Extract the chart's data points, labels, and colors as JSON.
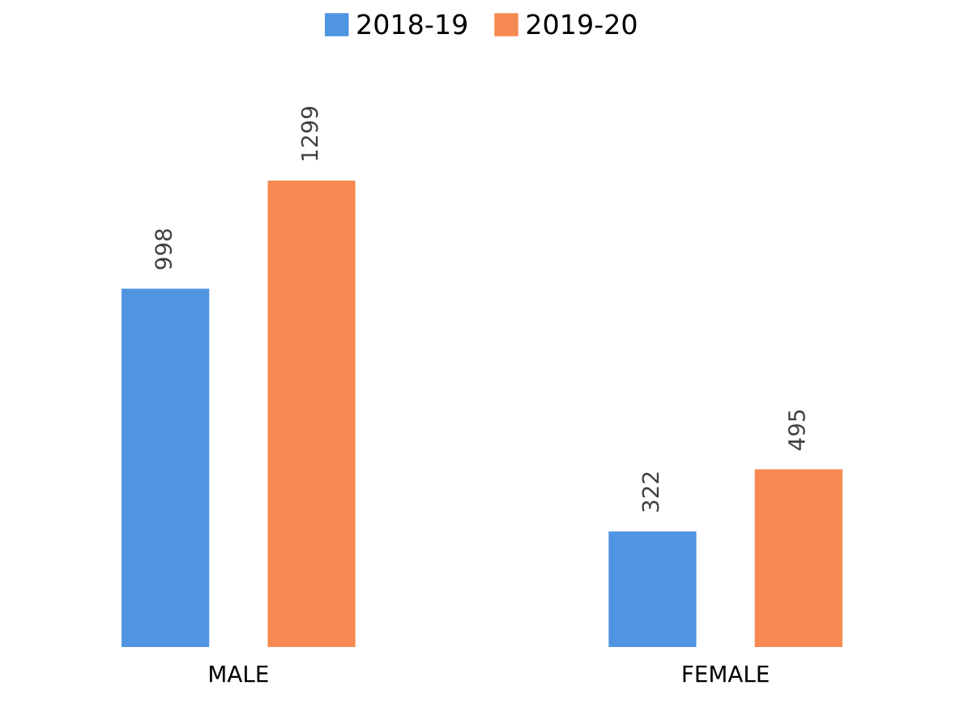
{
  "chart_data": {
    "type": "bar",
    "categories": [
      "MALE",
      "FEMALE"
    ],
    "series": [
      {
        "name": "2018-19",
        "color": "#4f95e2",
        "values": [
          998,
          322
        ]
      },
      {
        "name": "2019-20",
        "color": "#f68a52",
        "values": [
          1299,
          495
        ]
      }
    ],
    "data_labels": true,
    "legend": "top",
    "grid": false
  }
}
